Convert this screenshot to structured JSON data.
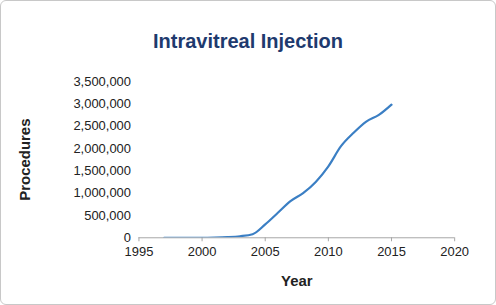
{
  "chart_data": {
    "type": "line",
    "title": "Intravitreal Injection",
    "xlabel": "Year",
    "ylabel": "Procedures",
    "x": [
      1997,
      1998,
      1999,
      2000,
      2001,
      2002,
      2003,
      2004,
      2005,
      2006,
      2007,
      2008,
      2009,
      2010,
      2011,
      2012,
      2013,
      2014,
      2015
    ],
    "values": [
      0,
      0,
      0,
      0,
      5000,
      15000,
      35000,
      80000,
      300000,
      560000,
      820000,
      1000000,
      1250000,
      1600000,
      2050000,
      2350000,
      2600000,
      2750000,
      2980000
    ],
    "color": "#3b7fc4",
    "xlim": [
      1995,
      2020
    ],
    "xticks": [
      1995,
      2000,
      2005,
      2010,
      2015,
      2020
    ],
    "ylim": [
      0,
      3500000
    ],
    "yticks": [
      0,
      {
        "value": 500000,
        "label": "500,000"
      },
      {
        "value": 1000000,
        "label": "1,000,000"
      },
      {
        "value": 1500000,
        "label": "1,500,000"
      },
      {
        "value": 2000000,
        "label": "2,000,000"
      },
      {
        "value": 2500000,
        "label": "2,500,000"
      },
      {
        "value": 3000000,
        "label": "3,000,000"
      },
      {
        "value": 3500000,
        "label": "3,500,000"
      }
    ],
    "grid": false
  }
}
